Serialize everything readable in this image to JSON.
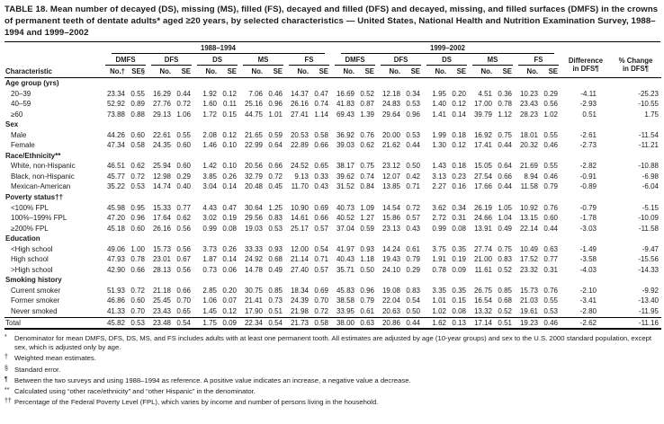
{
  "title": "TABLE 18. Mean number of decayed (DS), missing (MS), filled (FS), decayed and filled (DFS) and decayed, missing, and filled surfaces (DMFS) in the crowns of permanent teeth of dentate adults* aged ≥20 years, by selected characteristics — United States, National Health and Nutrition Examination Survey, 1988–1994 and 1999–2002",
  "table": {
    "header": {
      "characteristic": "Characteristic",
      "period1": "1988–1994",
      "period2": "1999–2002",
      "measures": [
        "DMFS",
        "DFS",
        "DS",
        "MS",
        "FS"
      ],
      "no_first": "No.†",
      "se_first": "SE§",
      "no": "No.",
      "se": "SE",
      "diff1": "Difference",
      "diff2": "in DFS¶",
      "pct1": "% Change",
      "pct2": "in DFS¶"
    },
    "sections": [
      {
        "label": "Age group (yrs)",
        "rows": [
          {
            "label": "20–39",
            "values": [
              "23.34",
              "0.55",
              "16.29",
              "0.44",
              "1.92",
              "0.12",
              "7.06",
              "0.46",
              "14.37",
              "0.47",
              "16.69",
              "0.52",
              "12.18",
              "0.34",
              "1.95",
              "0.20",
              "4.51",
              "0.36",
              "10.23",
              "0.29",
              "-4.11",
              "-25.23"
            ]
          },
          {
            "label": "40–59",
            "values": [
              "52.92",
              "0.89",
              "27.76",
              "0.72",
              "1.60",
              "0.11",
              "25.16",
              "0.96",
              "26.16",
              "0.74",
              "41.83",
              "0.87",
              "24.83",
              "0.53",
              "1.40",
              "0.12",
              "17.00",
              "0.78",
              "23.43",
              "0.56",
              "-2.93",
              "-10.55"
            ]
          },
          {
            "label": "≥60",
            "values": [
              "73.88",
              "0.88",
              "29.13",
              "1.06",
              "1.72",
              "0.15",
              "44.75",
              "1.01",
              "27.41",
              "1.14",
              "69.43",
              "1.39",
              "29.64",
              "0.96",
              "1.41",
              "0.14",
              "39.79",
              "1.12",
              "28.23",
              "1.02",
              "0.51",
              "1.75"
            ]
          }
        ]
      },
      {
        "label": "Sex",
        "rows": [
          {
            "label": "Male",
            "values": [
              "44.26",
              "0.60",
              "22.61",
              "0.55",
              "2.08",
              "0.12",
              "21.65",
              "0.59",
              "20.53",
              "0.58",
              "36.92",
              "0.76",
              "20.00",
              "0.53",
              "1.99",
              "0.18",
              "16.92",
              "0.75",
              "18.01",
              "0.55",
              "-2.61",
              "-11.54"
            ]
          },
          {
            "label": "Female",
            "values": [
              "47.34",
              "0.58",
              "24.35",
              "0.60",
              "1.46",
              "0.10",
              "22.99",
              "0.64",
              "22.89",
              "0.66",
              "39.03",
              "0.62",
              "21.62",
              "0.44",
              "1.30",
              "0.12",
              "17.41",
              "0.44",
              "20.32",
              "0.46",
              "-2.73",
              "-11.21"
            ]
          }
        ]
      },
      {
        "label": "Race/Ethnicity**",
        "rows": [
          {
            "label": "White, non-Hispanic",
            "values": [
              "46.51",
              "0.62",
              "25.94",
              "0.60",
              "1.42",
              "0.10",
              "20.56",
              "0.66",
              "24.52",
              "0.65",
              "38.17",
              "0.75",
              "23.12",
              "0.50",
              "1.43",
              "0.18",
              "15.05",
              "0.64",
              "21.69",
              "0.55",
              "-2.82",
              "-10.88"
            ]
          },
          {
            "label": "Black, non-Hispanic",
            "values": [
              "45.77",
              "0.72",
              "12.98",
              "0.29",
              "3.85",
              "0.26",
              "32.79",
              "0.72",
              "9.13",
              "0.33",
              "39.62",
              "0.74",
              "12.07",
              "0.42",
              "3.13",
              "0.23",
              "27.54",
              "0.66",
              "8.94",
              "0.46",
              "-0.91",
              "-6.98"
            ]
          },
          {
            "label": "Mexican-American",
            "values": [
              "35.22",
              "0.53",
              "14.74",
              "0.40",
              "3.04",
              "0.14",
              "20.48",
              "0.45",
              "11.70",
              "0.43",
              "31.52",
              "0.84",
              "13.85",
              "0.71",
              "2.27",
              "0.16",
              "17.66",
              "0.44",
              "11.58",
              "0.79",
              "-0.89",
              "-6.04"
            ]
          }
        ]
      },
      {
        "label": "Poverty status††",
        "rows": [
          {
            "label": "<100% FPL",
            "values": [
              "45.98",
              "0.95",
              "15.33",
              "0.77",
              "4.43",
              "0.47",
              "30.64",
              "1.25",
              "10.90",
              "0.69",
              "40.73",
              "1.09",
              "14.54",
              "0.72",
              "3.62",
              "0.34",
              "26.19",
              "1.05",
              "10.92",
              "0.76",
              "-0.79",
              "-5.15"
            ]
          },
          {
            "label": "100%–199% FPL",
            "values": [
              "47.20",
              "0.96",
              "17.64",
              "0.62",
              "3.02",
              "0.19",
              "29.56",
              "0.83",
              "14.61",
              "0.66",
              "40.52",
              "1.27",
              "15.86",
              "0.57",
              "2.72",
              "0.31",
              "24.66",
              "1.04",
              "13.15",
              "0.60",
              "-1.78",
              "-10.09"
            ]
          },
          {
            "label": "≥200% FPL",
            "values": [
              "45.18",
              "0.60",
              "26.16",
              "0.56",
              "0.99",
              "0.08",
              "19.03",
              "0.53",
              "25.17",
              "0.57",
              "37.04",
              "0.59",
              "23.13",
              "0.43",
              "0.99",
              "0.08",
              "13.91",
              "0.49",
              "22.14",
              "0.44",
              "-3.03",
              "-11.58"
            ]
          }
        ]
      },
      {
        "label": "Education",
        "rows": [
          {
            "label": "<High school",
            "values": [
              "49.06",
              "1.00",
              "15.73",
              "0.56",
              "3.73",
              "0.26",
              "33.33",
              "0.93",
              "12.00",
              "0.54",
              "41.97",
              "0.93",
              "14.24",
              "0.61",
              "3.75",
              "0.35",
              "27.74",
              "0.75",
              "10.49",
              "0.63",
              "-1.49",
              "-9.47"
            ]
          },
          {
            "label": "High school",
            "values": [
              "47.93",
              "0.78",
              "23.01",
              "0.67",
              "1.87",
              "0.14",
              "24.92",
              "0.68",
              "21.14",
              "0.71",
              "40.43",
              "1.18",
              "19.43",
              "0.79",
              "1.91",
              "0.19",
              "21.00",
              "0.83",
              "17.52",
              "0.77",
              "-3.58",
              "-15.56"
            ]
          },
          {
            "label": ">High school",
            "values": [
              "42.90",
              "0.66",
              "28.13",
              "0.56",
              "0.73",
              "0.06",
              "14.78",
              "0.49",
              "27.40",
              "0.57",
              "35.71",
              "0.50",
              "24.10",
              "0.29",
              "0.78",
              "0.09",
              "11.61",
              "0.52",
              "23.32",
              "0.31",
              "-4.03",
              "-14.33"
            ]
          }
        ]
      },
      {
        "label": "Smoking history",
        "rows": [
          {
            "label": "Current smoker",
            "values": [
              "51.93",
              "0.72",
              "21.18",
              "0.66",
              "2.85",
              "0.20",
              "30.75",
              "0.85",
              "18.34",
              "0.69",
              "45.83",
              "0.96",
              "19.08",
              "0.83",
              "3.35",
              "0.35",
              "26.75",
              "0.85",
              "15.73",
              "0.76",
              "-2.10",
              "-9.92"
            ]
          },
          {
            "label": "Former smoker",
            "values": [
              "46.86",
              "0.60",
              "25.45",
              "0.70",
              "1.06",
              "0.07",
              "21.41",
              "0.73",
              "24.39",
              "0.70",
              "38.58",
              "0.79",
              "22.04",
              "0.54",
              "1.01",
              "0.15",
              "16.54",
              "0.68",
              "21.03",
              "0.55",
              "-3.41",
              "-13.40"
            ]
          },
          {
            "label": "Never smoked",
            "values": [
              "41.33",
              "0.70",
              "23.43",
              "0.65",
              "1.45",
              "0.12",
              "17.90",
              "0.51",
              "21.98",
              "0.72",
              "33.95",
              "0.61",
              "20.63",
              "0.50",
              "1.02",
              "0.08",
              "13.32",
              "0.52",
              "19.61",
              "0.53",
              "-2.80",
              "-11.95"
            ]
          }
        ]
      }
    ],
    "total": {
      "label": "Total",
      "values": [
        "45.82",
        "0.53",
        "23.48",
        "0.54",
        "1.75",
        "0.09",
        "22.34",
        "0.54",
        "21.73",
        "0.58",
        "38.00",
        "0.63",
        "20.86",
        "0.44",
        "1.62",
        "0.13",
        "17.14",
        "0.51",
        "19.23",
        "0.46",
        "-2.62",
        "-11.16"
      ]
    }
  },
  "footnotes": [
    {
      "marker": "*",
      "text": "Denominator for mean DMFS, DFS, DS, MS, and FS includes adults with at least one permanent tooth.  All estimates are adjusted by age (10-year groups) and sex to the U.S. 2000 standard population, except sex, which is adjusted only by age."
    },
    {
      "marker": "†",
      "text": "Weighted mean estimates."
    },
    {
      "marker": "§",
      "text": "Standard error."
    },
    {
      "marker": "¶",
      "text": "Between the two surveys and using 1988–1994 as reference. A positive value indicates an increase, a negative value a decrease."
    },
    {
      "marker": "**",
      "text": "Calculated using “other race/ethnicity” and “other Hispanic” in the denominator."
    },
    {
      "marker": "††",
      "text": "Percentage of the Federal Poverty Level (FPL), which varies by income and number of persons living in the household."
    }
  ]
}
